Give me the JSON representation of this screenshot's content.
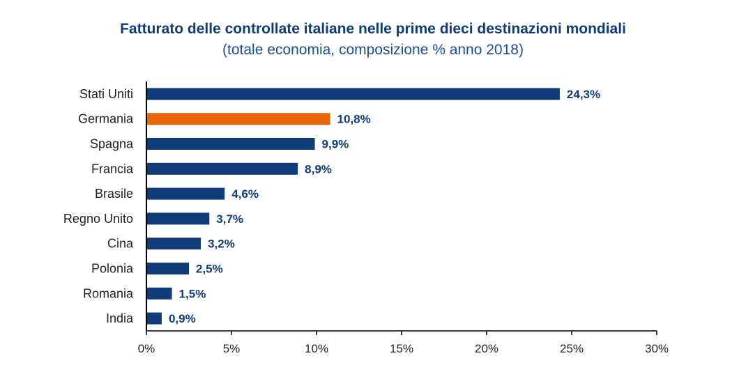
{
  "chart_data": {
    "type": "bar",
    "orientation": "horizontal",
    "title": "Fatturato delle controllate italiane nelle prime dieci destinazioni mondiali",
    "subtitle": "(totale economia, composizione % anno 2018)",
    "categories": [
      "Stati Uniti",
      "Germania",
      "Spagna",
      "Francia",
      "Brasile",
      "Regno Unito",
      "Cina",
      "Polonia",
      "Romania",
      "India"
    ],
    "values": [
      24.3,
      10.8,
      9.9,
      8.9,
      4.6,
      3.7,
      3.2,
      2.5,
      1.5,
      0.9
    ],
    "value_labels": [
      "24,3%",
      "10,8%",
      "9,9%",
      "8,9%",
      "4,6%",
      "3,7%",
      "3,2%",
      "2,5%",
      "1,5%",
      "0,9%"
    ],
    "highlight_category": "Germania",
    "xlabel": "",
    "ylabel": "",
    "xlim": [
      0,
      30
    ],
    "x_ticks": [
      0,
      5,
      10,
      15,
      20,
      25,
      30
    ],
    "x_tick_labels": [
      "0%",
      "5%",
      "10%",
      "15%",
      "20%",
      "25%",
      "30%"
    ],
    "grid": false,
    "legend": "none",
    "colors": {
      "bar": "#0f3b7a",
      "highlight": "#e8650a",
      "label": "#0f3b7a"
    }
  }
}
